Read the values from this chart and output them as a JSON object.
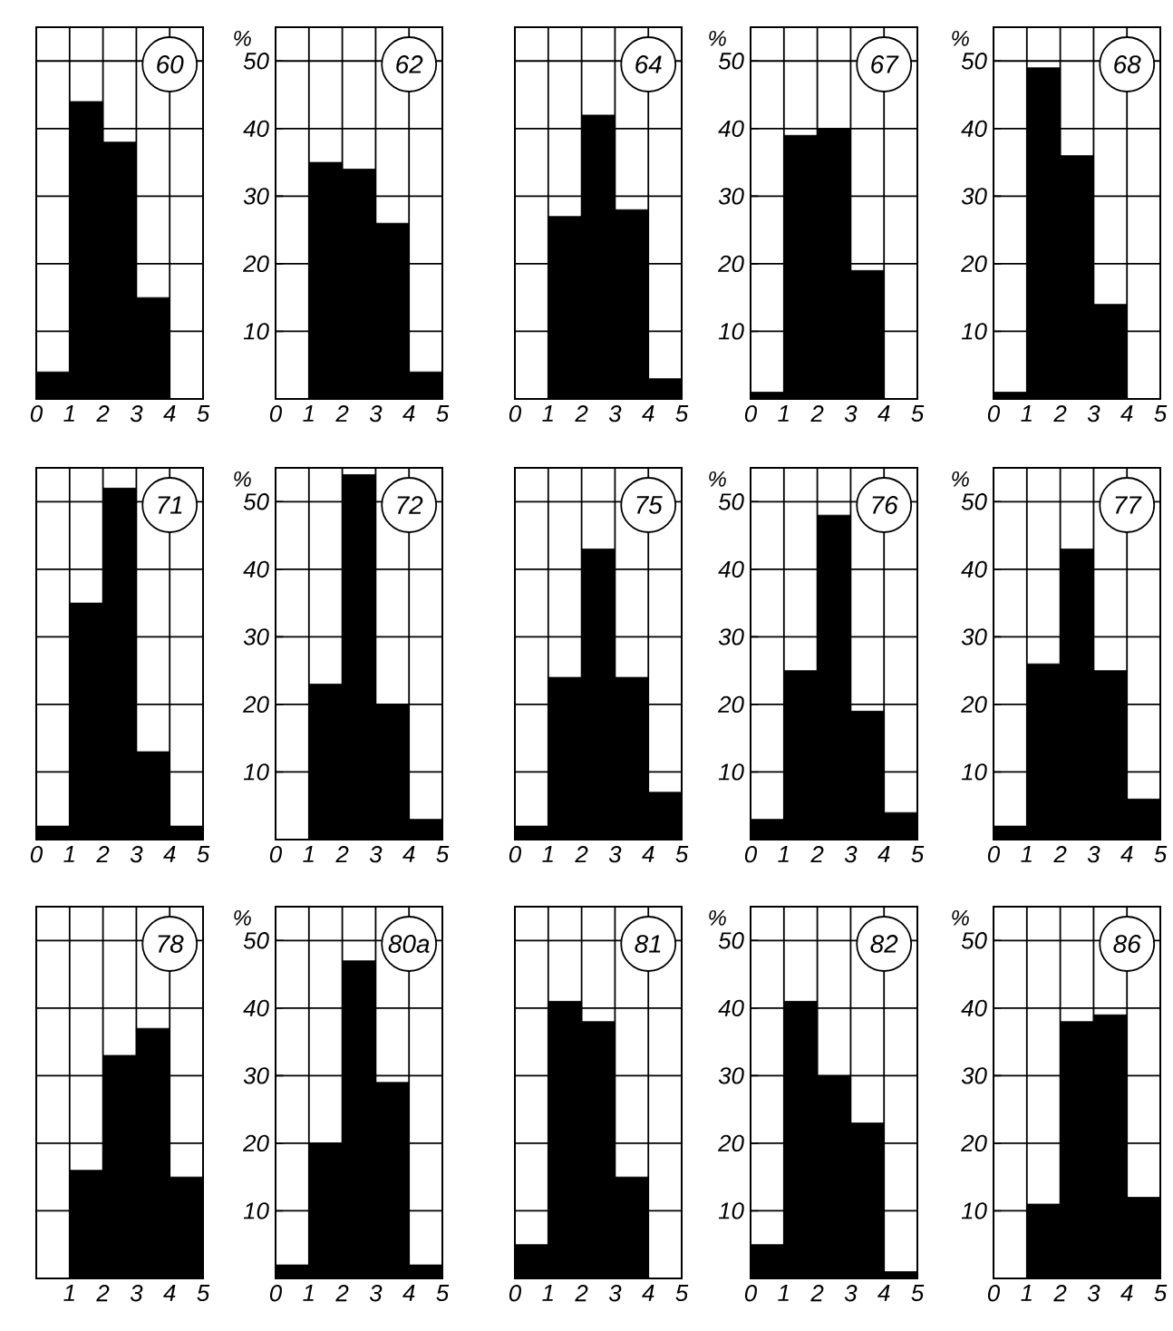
{
  "chart_data": [
    {
      "type": "histogram",
      "title": "60",
      "bins": [
        0,
        1,
        2,
        3,
        4,
        5
      ],
      "values": [
        4,
        44,
        38,
        15,
        0
      ],
      "color": "#000000",
      "xlim": [
        0,
        5
      ],
      "ylim": [
        0,
        55
      ],
      "xticks": [
        0,
        1,
        2,
        3,
        4,
        5
      ],
      "yticks": [
        10,
        20,
        30,
        40,
        50
      ],
      "grid": true,
      "tick_labels": "x"
    },
    {
      "type": "histogram",
      "title": "62",
      "ylabel": "%",
      "bins": [
        0,
        1,
        2,
        3,
        4,
        5
      ],
      "values": [
        0,
        35,
        34,
        26,
        4
      ],
      "color": "#000000",
      "xlim": [
        0,
        5
      ],
      "ylim": [
        0,
        55
      ],
      "xticks": [
        0,
        1,
        2,
        3,
        4,
        5
      ],
      "yticks": [
        10,
        20,
        30,
        40,
        50
      ],
      "grid": true
    },
    {
      "type": "histogram",
      "title": "64",
      "bins": [
        0,
        1,
        2,
        3,
        4,
        5
      ],
      "values": [
        0,
        27,
        42,
        28,
        3
      ],
      "color": "#000000",
      "xlim": [
        0,
        5
      ],
      "ylim": [
        0,
        55
      ],
      "xticks": [
        0,
        1,
        2,
        3,
        4,
        5
      ],
      "yticks": [
        10,
        20,
        30,
        40,
        50
      ],
      "grid": true,
      "tick_labels": "x"
    },
    {
      "type": "histogram",
      "title": "67",
      "ylabel": "%",
      "bins": [
        0,
        1,
        2,
        3,
        4,
        5
      ],
      "values": [
        1,
        39,
        40,
        19,
        0
      ],
      "color": "#000000",
      "xlim": [
        0,
        5
      ],
      "ylim": [
        0,
        55
      ],
      "xticks": [
        0,
        1,
        2,
        3,
        4,
        5
      ],
      "yticks": [
        10,
        20,
        30,
        40,
        50
      ],
      "grid": true
    },
    {
      "type": "histogram",
      "title": "68",
      "ylabel": "%",
      "bins": [
        0,
        1,
        2,
        3,
        4,
        5
      ],
      "values": [
        1,
        49,
        36,
        14,
        0
      ],
      "color": "#000000",
      "xlim": [
        0,
        5
      ],
      "ylim": [
        0,
        55
      ],
      "xticks": [
        0,
        1,
        2,
        3,
        4,
        5
      ],
      "yticks": [
        10,
        20,
        30,
        40,
        50
      ],
      "grid": true
    },
    {
      "type": "histogram",
      "title": "71",
      "bins": [
        0,
        1,
        2,
        3,
        4,
        5
      ],
      "values": [
        2,
        35,
        52,
        13,
        2
      ],
      "color": "#000000",
      "xlim": [
        0,
        5
      ],
      "ylim": [
        0,
        55
      ],
      "xticks": [
        0,
        1,
        2,
        3,
        4,
        5
      ],
      "yticks": [
        10,
        20,
        30,
        40,
        50
      ],
      "grid": true,
      "tick_labels": "x"
    },
    {
      "type": "histogram",
      "title": "72",
      "ylabel": "%",
      "bins": [
        0,
        1,
        2,
        3,
        4,
        5
      ],
      "values": [
        0,
        23,
        54,
        20,
        3
      ],
      "color": "#000000",
      "xlim": [
        0,
        5
      ],
      "ylim": [
        0,
        55
      ],
      "xticks": [
        0,
        1,
        2,
        3,
        4,
        5
      ],
      "yticks": [
        10,
        20,
        30,
        40,
        50
      ],
      "grid": true
    },
    {
      "type": "histogram",
      "title": "75",
      "bins": [
        0,
        1,
        2,
        3,
        4,
        5
      ],
      "values": [
        2,
        24,
        43,
        24,
        7
      ],
      "color": "#000000",
      "xlim": [
        0,
        5
      ],
      "ylim": [
        0,
        55
      ],
      "xticks": [
        0,
        1,
        2,
        3,
        4,
        5
      ],
      "yticks": [
        10,
        20,
        30,
        40,
        50
      ],
      "grid": true,
      "tick_labels": "x"
    },
    {
      "type": "histogram",
      "title": "76",
      "ylabel": "%",
      "bins": [
        0,
        1,
        2,
        3,
        4,
        5
      ],
      "values": [
        3,
        25,
        48,
        19,
        4
      ],
      "color": "#000000",
      "xlim": [
        0,
        5
      ],
      "ylim": [
        0,
        55
      ],
      "xticks": [
        0,
        1,
        2,
        3,
        4,
        5
      ],
      "yticks": [
        10,
        20,
        30,
        40,
        50
      ],
      "grid": true
    },
    {
      "type": "histogram",
      "title": "77",
      "ylabel": "%",
      "bins": [
        0,
        1,
        2,
        3,
        4,
        5
      ],
      "values": [
        2,
        26,
        43,
        25,
        6
      ],
      "color": "#000000",
      "xlim": [
        0,
        5
      ],
      "ylim": [
        0,
        55
      ],
      "xticks": [
        0,
        1,
        2,
        3,
        4,
        5
      ],
      "yticks": [
        10,
        20,
        30,
        40,
        50
      ],
      "grid": true
    },
    {
      "type": "histogram",
      "title": "78",
      "bins": [
        0,
        1,
        2,
        3,
        4,
        5
      ],
      "values": [
        0,
        16,
        33,
        37,
        15
      ],
      "color": "#000000",
      "xlim": [
        0,
        5
      ],
      "ylim": [
        0,
        55
      ],
      "xticks": [
        1,
        2,
        3,
        4,
        5
      ],
      "yticks": [
        10,
        20,
        30,
        40,
        50
      ],
      "grid": true,
      "tick_labels": "x"
    },
    {
      "type": "histogram",
      "title": "80a",
      "ylabel": "%",
      "bins": [
        0,
        1,
        2,
        3,
        4,
        5
      ],
      "values": [
        2,
        20,
        47,
        29,
        2
      ],
      "color": "#000000",
      "xlim": [
        0,
        5
      ],
      "ylim": [
        0,
        55
      ],
      "xticks": [
        0,
        1,
        2,
        3,
        4,
        5
      ],
      "yticks": [
        10,
        20,
        30,
        40,
        50
      ],
      "grid": true
    },
    {
      "type": "histogram",
      "title": "81",
      "bins": [
        0,
        1,
        2,
        3,
        4,
        5
      ],
      "values": [
        5,
        41,
        38,
        15,
        0
      ],
      "color": "#000000",
      "xlim": [
        0,
        5
      ],
      "ylim": [
        0,
        55
      ],
      "xticks": [
        0,
        1,
        2,
        3,
        4,
        5
      ],
      "yticks": [
        10,
        20,
        30,
        40,
        50
      ],
      "grid": true,
      "tick_labels": "x"
    },
    {
      "type": "histogram",
      "title": "82",
      "ylabel": "%",
      "bins": [
        0,
        1,
        2,
        3,
        4,
        5
      ],
      "values": [
        5,
        41,
        30,
        23,
        1
      ],
      "color": "#000000",
      "xlim": [
        0,
        5
      ],
      "ylim": [
        0,
        55
      ],
      "xticks": [
        0,
        1,
        2,
        3,
        4,
        5
      ],
      "yticks": [
        10,
        20,
        30,
        40,
        50
      ],
      "grid": true
    },
    {
      "type": "histogram",
      "title": "86",
      "ylabel": "%",
      "bins": [
        0,
        1,
        2,
        3,
        4,
        5
      ],
      "values": [
        0,
        11,
        38,
        39,
        12
      ],
      "color": "#000000",
      "xlim": [
        0,
        5
      ],
      "ylim": [
        0,
        55
      ],
      "xticks": [
        0,
        1,
        2,
        3,
        4,
        5
      ],
      "yticks": [
        10,
        20,
        30,
        40,
        50
      ],
      "grid": true
    }
  ]
}
